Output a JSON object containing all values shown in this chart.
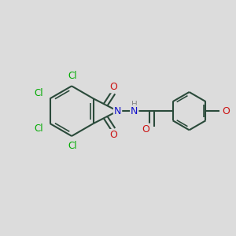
{
  "bg_color": "#dcdcdc",
  "atom_colors": {
    "C": "#2a2a2a",
    "Cl": "#00aa00",
    "N": "#1111cc",
    "O": "#cc1111",
    "H": "#888888"
  },
  "bond_color": "#2a4a3a",
  "figsize": [
    3.0,
    3.0
  ],
  "dpi": 100
}
